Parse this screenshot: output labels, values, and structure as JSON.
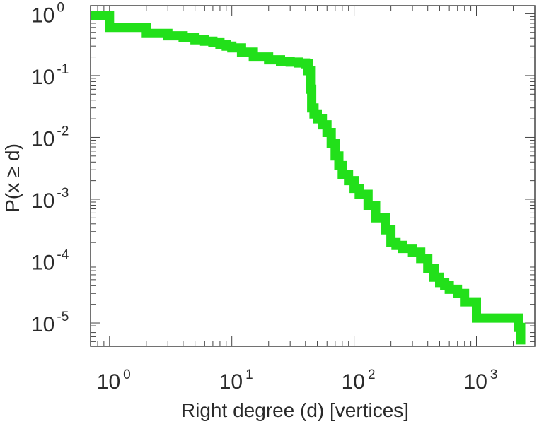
{
  "chart_data": {
    "type": "line",
    "step": true,
    "xlabel": "Right degree (d) [vertices]",
    "ylabel": "P(x ≥ d)",
    "xscale": "log",
    "yscale": "log",
    "xlim": [
      0.7,
      3000
    ],
    "ylim": [
      4.2e-06,
      1.35
    ],
    "grid": false,
    "line_color": "#22e01a",
    "x_ticks": [
      {
        "base": "10",
        "exp": "0",
        "value": 1
      },
      {
        "base": "10",
        "exp": "1",
        "value": 10
      },
      {
        "base": "10",
        "exp": "2",
        "value": 100
      },
      {
        "base": "10",
        "exp": "3",
        "value": 1000
      }
    ],
    "y_ticks": [
      {
        "base": "10",
        "exp": "0",
        "value": 1
      },
      {
        "base": "10",
        "exp": "-1",
        "value": 0.1
      },
      {
        "base": "10",
        "exp": "-2",
        "value": 0.01
      },
      {
        "base": "10",
        "exp": "-3",
        "value": 0.001
      },
      {
        "base": "10",
        "exp": "-4",
        "value": 0.0001
      },
      {
        "base": "10",
        "exp": "-5",
        "value": 1e-05
      }
    ],
    "series": [
      {
        "x": [
          0.7,
          1,
          2,
          3,
          4,
          5,
          6,
          7,
          8,
          9,
          10,
          12,
          15,
          20,
          25,
          30,
          35,
          40,
          42,
          44,
          45,
          47,
          50,
          55,
          60,
          65,
          70,
          75,
          80,
          90,
          100,
          110,
          130,
          150,
          180,
          200,
          220,
          250,
          300,
          350,
          400,
          450,
          500,
          550,
          600,
          700,
          800,
          1000,
          1400,
          2000,
          2200,
          2300
        ],
        "y": [
          0.93,
          0.6,
          0.48,
          0.44,
          0.41,
          0.38,
          0.36,
          0.34,
          0.32,
          0.3,
          0.28,
          0.24,
          0.2,
          0.18,
          0.17,
          0.165,
          0.16,
          0.155,
          0.12,
          0.06,
          0.03,
          0.024,
          0.02,
          0.016,
          0.012,
          0.008,
          0.005,
          0.0035,
          0.0025,
          0.002,
          0.0015,
          0.0012,
          0.0008,
          0.0005,
          0.00032,
          0.0002,
          0.00018,
          0.00016,
          0.00014,
          0.00011,
          7.5e-05,
          5.5e-05,
          4.5e-05,
          4e-05,
          3.5e-05,
          3e-05,
          2.2e-05,
          1.2e-05,
          1.2e-05,
          1.2e-05,
          8.5e-06,
          4.5e-06
        ]
      }
    ]
  }
}
